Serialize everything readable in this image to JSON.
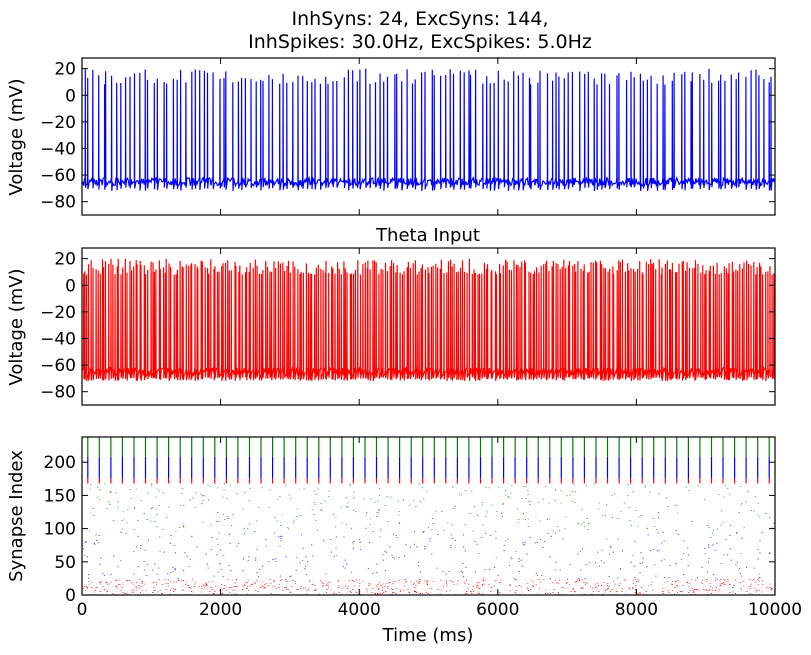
{
  "figure": {
    "title_line1": "InhSyns: 24, ExcSyns: 144,",
    "title_line2": "InhSpikes: 30.0Hz, ExcSpikes: 5.0Hz"
  },
  "chart_data": [
    {
      "type": "line",
      "title": "",
      "xlabel": "",
      "ylabel": "Voltage (mV)",
      "xlim": [
        0,
        10000
      ],
      "ylim": [
        -90,
        28
      ],
      "yticks": [
        20,
        0,
        -20,
        -40,
        -60,
        -80
      ],
      "ytick_labels": [
        "20",
        "0",
        "−20",
        "−40",
        "−60",
        "−80"
      ],
      "series": [
        {
          "color": "#0000ff",
          "baseline_mv": -65,
          "spike_peak_mv": 20,
          "spike_count": 150,
          "x_range_ms": [
            0,
            10000
          ]
        }
      ]
    },
    {
      "type": "line",
      "title": "Theta Input",
      "xlabel": "",
      "ylabel": "Voltage (mV)",
      "xlim": [
        0,
        10000
      ],
      "ylim": [
        -90,
        28
      ],
      "yticks": [
        20,
        0,
        -20,
        -40,
        -60,
        -80
      ],
      "ytick_labels": [
        "20",
        "0",
        "−20",
        "−40",
        "−60",
        "−80"
      ],
      "series": [
        {
          "color": "#ff0000",
          "baseline_mv": -65,
          "spike_peak_mv": 20,
          "spike_count": 330,
          "x_range_ms": [
            0,
            10000
          ]
        }
      ]
    },
    {
      "type": "scatter",
      "title": "",
      "xlabel": "Time (ms)",
      "ylabel": "Synapse Index",
      "xlim": [
        0,
        10000
      ],
      "ylim": [
        0,
        238
      ],
      "xticks": [
        0,
        2000,
        4000,
        6000,
        8000,
        10000
      ],
      "xtick_labels": [
        "0",
        "2000",
        "4000",
        "6000",
        "8000",
        "10000"
      ],
      "yticks": [
        0,
        50,
        100,
        150,
        200
      ],
      "ytick_labels": [
        "0",
        "50",
        "100",
        "150",
        "200"
      ],
      "series": [
        {
          "color": "#ff0000",
          "index_range": [
            0,
            24
          ],
          "marker": "vertical tick",
          "events_per_row": 30
        },
        {
          "color": "#0000ff",
          "index_range": [
            24,
            96
          ],
          "marker": "vertical tick",
          "events_per_row": 5
        },
        {
          "color": "#008000",
          "index_range": [
            96,
            168
          ],
          "marker": "vertical tick",
          "events_per_row": 5
        },
        {
          "color": "#ff0000",
          "index_range": [
            168,
            176
          ],
          "marker": "vertical tick",
          "events_per_row": 60
        },
        {
          "color": "#0000ff",
          "index_range": [
            176,
            208
          ],
          "marker": "vertical tick",
          "events_per_row": 60
        },
        {
          "color": "#008000",
          "index_range": [
            208,
            238
          ],
          "marker": "vertical tick",
          "events_per_row": 60
        }
      ]
    }
  ]
}
